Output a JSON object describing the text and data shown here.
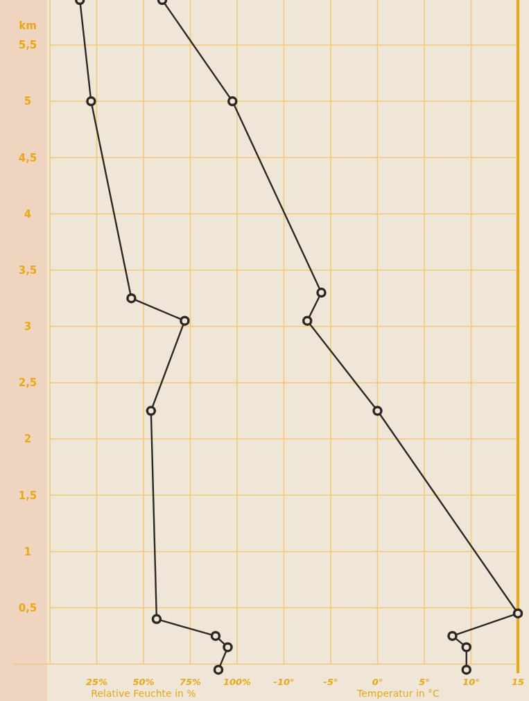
{
  "chart_data": {
    "type": "line",
    "ylabel": "km",
    "xlabel": "Relative Feuchte in %",
    "x2label": "Temperatur in °C",
    "xlim": [
      0,
      250
    ],
    "xticks": [
      {
        "value": 0,
        "label": null
      },
      {
        "value": 25,
        "label": "25%"
      },
      {
        "value": 50,
        "label": "50%"
      },
      {
        "value": 75,
        "label": "75%"
      },
      {
        "value": 100,
        "label": "100%"
      }
    ],
    "x2lim": [
      -35,
      15
    ],
    "x2ticks": [
      {
        "value": -10,
        "label": "-10°"
      },
      {
        "value": -5,
        "label": "-5°"
      },
      {
        "value": 0,
        "label": "0°"
      },
      {
        "value": 5,
        "label": "5°"
      },
      {
        "value": 10,
        "label": "10°"
      },
      15
    ],
    "ylim": [
      -0.1,
      5.9
    ],
    "yticks": [
      {
        "value": 0,
        "label": null
      },
      {
        "value": 0.5,
        "label": "0,5"
      },
      {
        "value": 1,
        "label": "1"
      },
      {
        "value": 1.5,
        "label": "1,5"
      },
      {
        "value": 2,
        "label": "2"
      },
      {
        "value": 2.5,
        "label": "2,5"
      },
      {
        "value": 3,
        "label": "3"
      },
      {
        "value": 3.5,
        "label": "3,5"
      },
      {
        "value": 4,
        "label": "4"
      },
      {
        "value": 4.5,
        "label": "4,5"
      },
      {
        "value": 5,
        "label": "5"
      },
      {
        "value": 5.5,
        "label": "5,5"
      }
    ],
    "grid": true,
    "marker": "circle",
    "line_style": "solid",
    "ref_lines": [
      {
        "axis": "x2",
        "value": 15,
        "color": "#e8a818"
      }
    ],
    "series": [
      {
        "color": "#2b2724",
        "x": [
          16,
          22,
          43.5,
          72,
          54,
          57,
          88.5,
          95,
          90
        ],
        "values": [
          5.9,
          5.0,
          3.25,
          3.05,
          2.25,
          0.4,
          0.25,
          0.15,
          -0.05
        ]
      },
      {
        "color": "#2b2724",
        "axis": "x2",
        "x": [
          -23,
          -15.5,
          -6,
          -7.5,
          0,
          15,
          8,
          9.5,
          9.5
        ],
        "values": [
          5.9,
          5.0,
          3.3,
          3.05,
          2.25,
          0.45,
          0.25,
          0.15,
          -0.05
        ]
      }
    ]
  }
}
